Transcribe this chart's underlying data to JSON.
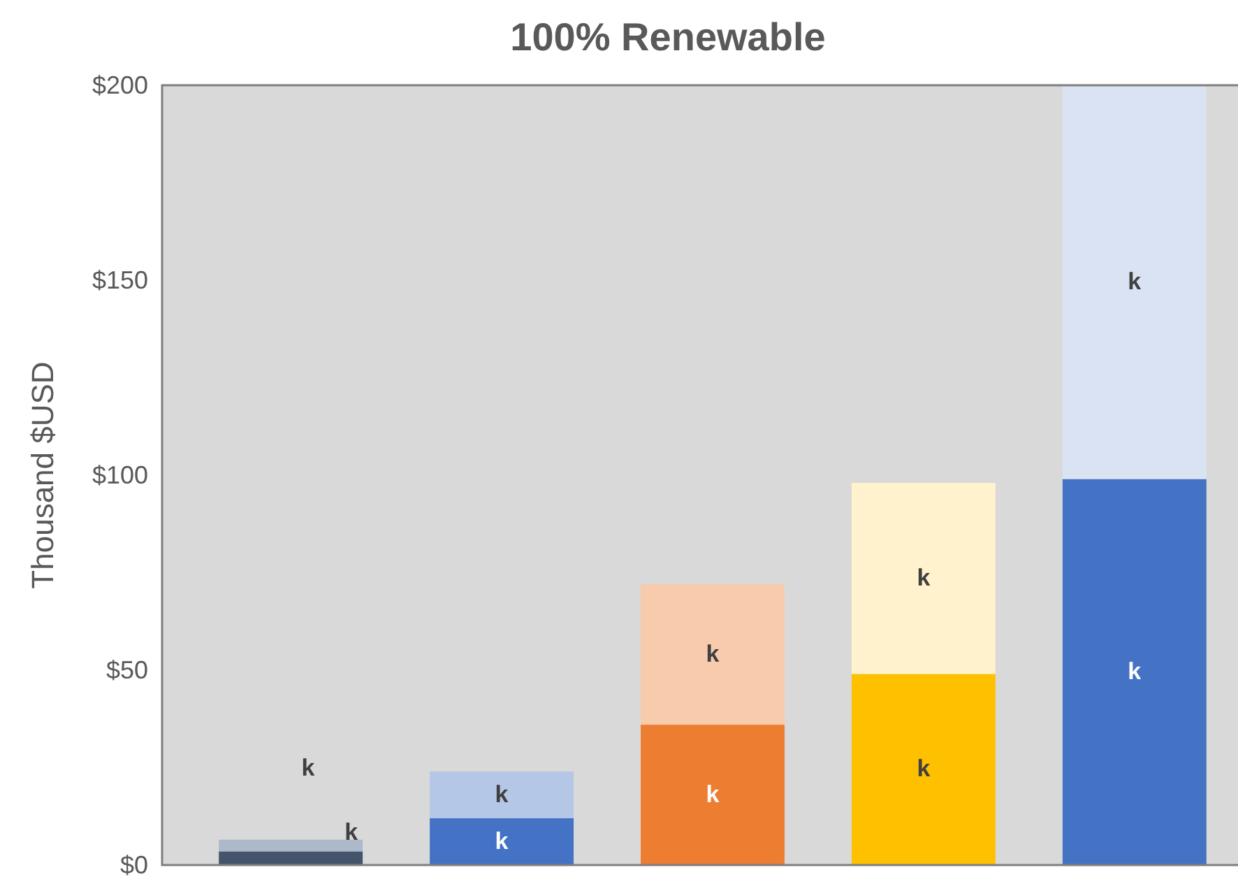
{
  "chart_data": {
    "type": "bar",
    "title": "100% Renewable",
    "ylabel": "Thousand $USD",
    "stacked": true,
    "categories": [
      null,
      null,
      null,
      null,
      null
    ],
    "series": [
      {
        "colors": [
          "#44546a",
          "#4472c4",
          "#ed7d31",
          "#ffc000",
          "#4472c4"
        ],
        "values": [
          3.5,
          12,
          36,
          49,
          99
        ],
        "value_labels": [
          "k",
          "k",
          "k",
          "k",
          "k"
        ]
      },
      {
        "colors": [
          "#acb9ca",
          "#b4c7e7",
          "#f8cbad",
          "#fff2cc",
          "#dae3f3"
        ],
        "values": [
          3,
          12,
          36,
          49,
          101
        ],
        "value_labels": [
          "k",
          "k",
          "k",
          "k",
          "k"
        ]
      }
    ],
    "ylim": [
      0,
      200
    ],
    "yticks": [
      {
        "value": 0,
        "label": "$0"
      },
      {
        "value": 50,
        "label": "$50"
      },
      {
        "value": 100,
        "label": "$100"
      },
      {
        "value": 150,
        "label": "$150"
      },
      {
        "value": 200,
        "label": "$200"
      }
    ],
    "grid": false
  }
}
